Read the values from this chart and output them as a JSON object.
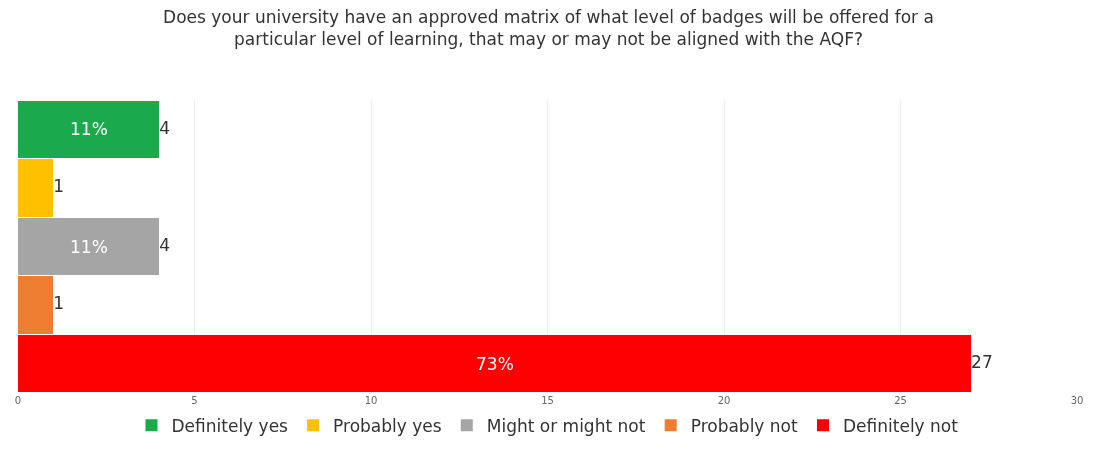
{
  "chart_data": {
    "type": "bar",
    "orientation": "horizontal",
    "title": "Does your university have an approved matrix of what level of badges will be offered for a particular level of learning, that may or may not be aligned with the AQF?",
    "categories": [
      null,
      null,
      null,
      null,
      null
    ],
    "series": [
      {
        "name": "Definitely yes",
        "color": "#1aaa4b",
        "values": [
          4,
          null,
          null,
          null,
          null
        ]
      },
      {
        "name": "Probably yes",
        "color": "#ffc000",
        "values": [
          null,
          1,
          null,
          null,
          null
        ]
      },
      {
        "name": "Might or might not",
        "color": "#a5a5a5",
        "values": [
          null,
          null,
          4,
          null,
          null
        ]
      },
      {
        "name": "Probably not",
        "color": "#ed7d31",
        "values": [
          null,
          null,
          null,
          1,
          null
        ]
      },
      {
        "name": "Definitely not",
        "color": "#ff0000",
        "values": [
          null,
          null,
          null,
          null,
          27
        ]
      }
    ],
    "annotations": [
      "11%",
      "11%",
      "73%"
    ],
    "data_labels": true,
    "xlim": [
      0,
      30
    ],
    "xticks": [
      0,
      5,
      10,
      15,
      20,
      25,
      30
    ],
    "grid": "x",
    "legend": "bottom",
    "tick_labels": "x"
  }
}
